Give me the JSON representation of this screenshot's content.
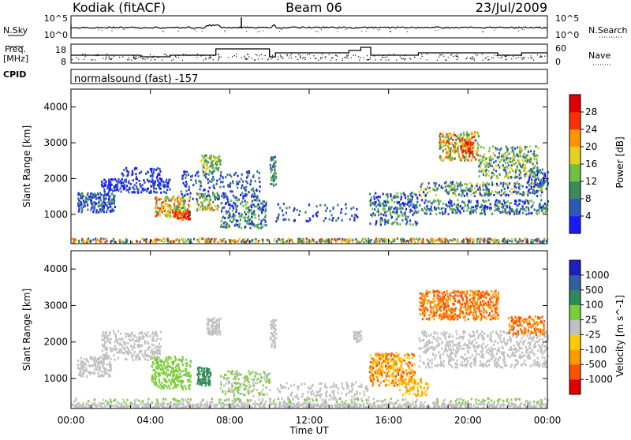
{
  "header": {
    "station": "Kodiak (fitACF)",
    "beam": "Beam 06",
    "date": "23/Jul/2009"
  },
  "top_panels": {
    "nsky_label": "N.Sky",
    "nsky_ticks": [
      "10^5",
      "10^0"
    ],
    "nsearch_label": "N.Search",
    "nsearch_ticks": [
      "10^5",
      "10^0"
    ],
    "freq_label": "Freq.",
    "freq_unit": "[MHz]",
    "freq_ticks": [
      "18",
      "8"
    ],
    "nave_label": "Nave",
    "nave_ticks": [
      "60",
      "0"
    ],
    "cpid_label": "CPID",
    "cpid_text": "normalsound (fast) -157"
  },
  "chart_data": [
    {
      "type": "heatmap",
      "name": "power",
      "ylabel": "Slant Range [km]",
      "ylim": [
        180,
        4500
      ],
      "yticks": [
        "1000",
        "2000",
        "3000",
        "4000"
      ],
      "colorbar_label": "Power [dB]",
      "colorbar_ticks": [
        "4",
        "8",
        "12",
        "16",
        "20",
        "24",
        "28"
      ],
      "colors": [
        "#1a1aff",
        "#2d59b8",
        "#3a8a5a",
        "#6fc040",
        "#e8d020",
        "#ff9500",
        "#ff3000",
        "#e00000"
      ]
    },
    {
      "type": "heatmap",
      "name": "velocity",
      "ylabel": "Slant Range [km]",
      "ylim": [
        180,
        4500
      ],
      "yticks": [
        "1000",
        "2000",
        "3000",
        "4000"
      ],
      "colorbar_label": "Velocity [m s^-1]",
      "colorbar_ticks": [
        "1000",
        "500",
        "100",
        "25",
        "-25",
        "-100",
        "-500",
        "-1000"
      ],
      "colors": [
        "#2020c0",
        "#3060a0",
        "#2e8b57",
        "#7ccd3c",
        "#c0c0c0",
        "#ffcc00",
        "#ff9900",
        "#ff5000",
        "#e00000"
      ]
    }
  ],
  "x_axis": {
    "ticks": [
      "00:00",
      "04:00",
      "08:00",
      "12:00",
      "16:00",
      "20:00",
      "00:00"
    ],
    "label": "Time UT"
  }
}
